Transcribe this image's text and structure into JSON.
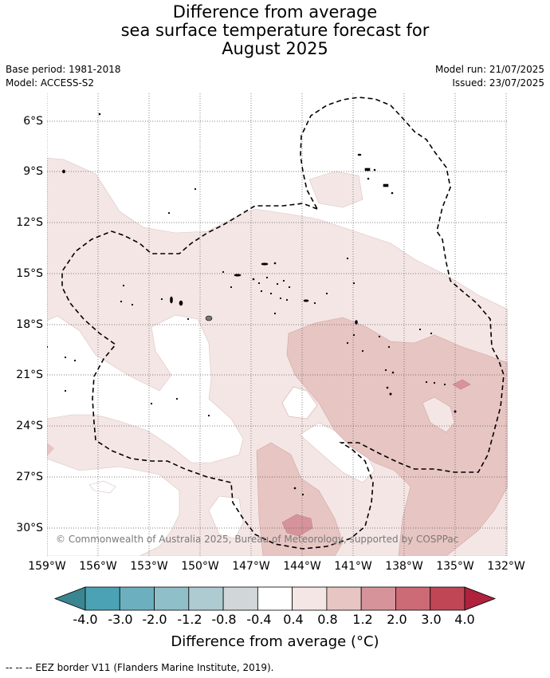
{
  "title": {
    "line1": "Difference from average",
    "line2": "sea surface temperature forecast for",
    "line3": "August 2025"
  },
  "meta": {
    "base_period": "Base period: 1981-2018",
    "model": "Model: ACCESS-S2",
    "model_run": "Model run: 21/07/2025",
    "issued": "Issued: 23/07/2025"
  },
  "axes": {
    "lat_labels": [
      "6°S",
      "9°S",
      "12°S",
      "15°S",
      "18°S",
      "21°S",
      "24°S",
      "27°S",
      "30°S"
    ],
    "lon_labels": [
      "159°W",
      "156°W",
      "153°W",
      "150°W",
      "147°W",
      "144°W",
      "141°W",
      "138°W",
      "135°W",
      "132°W"
    ]
  },
  "copyright": "© Commonwealth of Australia 2025, Bureau of Meteorology, supported by COSPPac",
  "colorbar": {
    "tick_labels": [
      "-4.0",
      "-3.0",
      "-2.0",
      "-1.2",
      "-0.8",
      "-0.4",
      "0.4",
      "0.8",
      "1.2",
      "2.0",
      "3.0",
      "4.0"
    ],
    "colors": [
      "#4aa2b4",
      "#6cb0c0",
      "#8fbfc9",
      "#adcbd0",
      "#d1d6d8",
      "#ffffff",
      "#f4e6e5",
      "#e7c5c2",
      "#d6949a",
      "#cc6a76",
      "#c04656"
    ],
    "under_color": "#3b8591",
    "over_color": "#b0213d",
    "title": "Difference from average (°C)"
  },
  "footer": "-- -- -- EEZ border V11 (Flanders Marine Institute, 2019)."
}
